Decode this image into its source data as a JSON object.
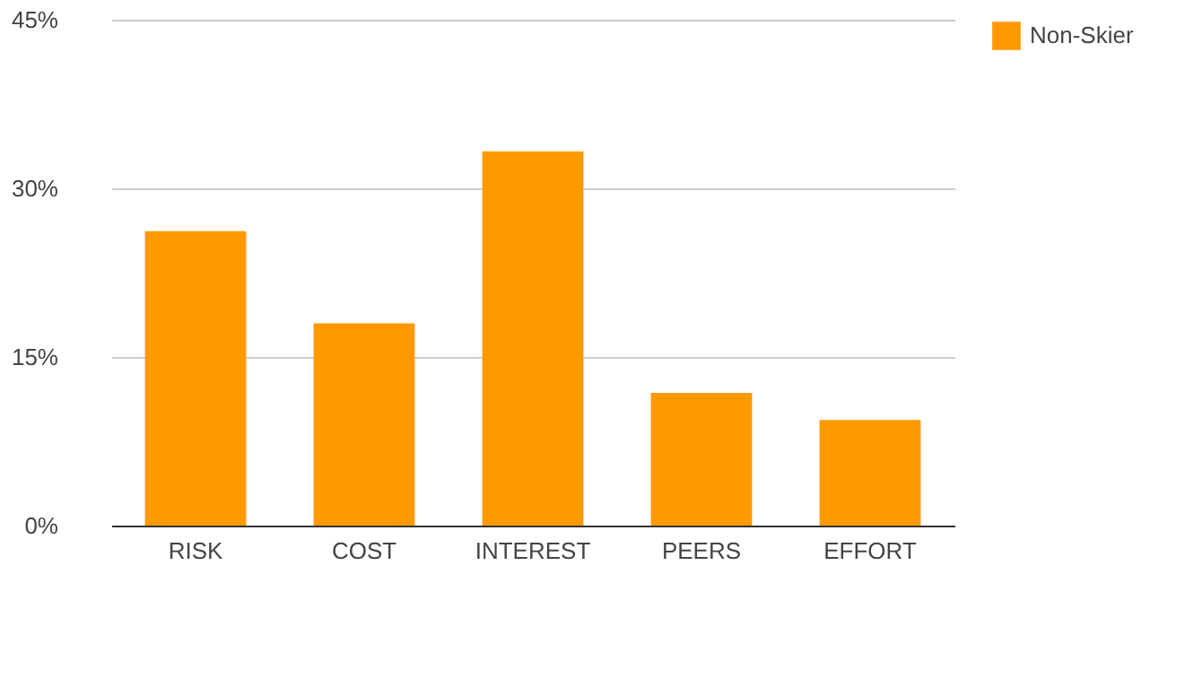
{
  "chart_data": {
    "type": "bar",
    "categories": [
      "RISK",
      "COST",
      "INTEREST",
      "PEERS",
      "EFFORT"
    ],
    "series": [
      {
        "name": "Non-Skier",
        "color": "#ff9900",
        "values": [
          26.2,
          18,
          33.3,
          11.8,
          9.4
        ]
      }
    ],
    "ylim": [
      0,
      45
    ],
    "yticks": [
      {
        "value": 0,
        "label": "0%"
      },
      {
        "value": 15,
        "label": "15%"
      },
      {
        "value": 30,
        "label": "30%"
      },
      {
        "value": 45,
        "label": "45%"
      }
    ],
    "grid": "y",
    "legend": "top right"
  }
}
